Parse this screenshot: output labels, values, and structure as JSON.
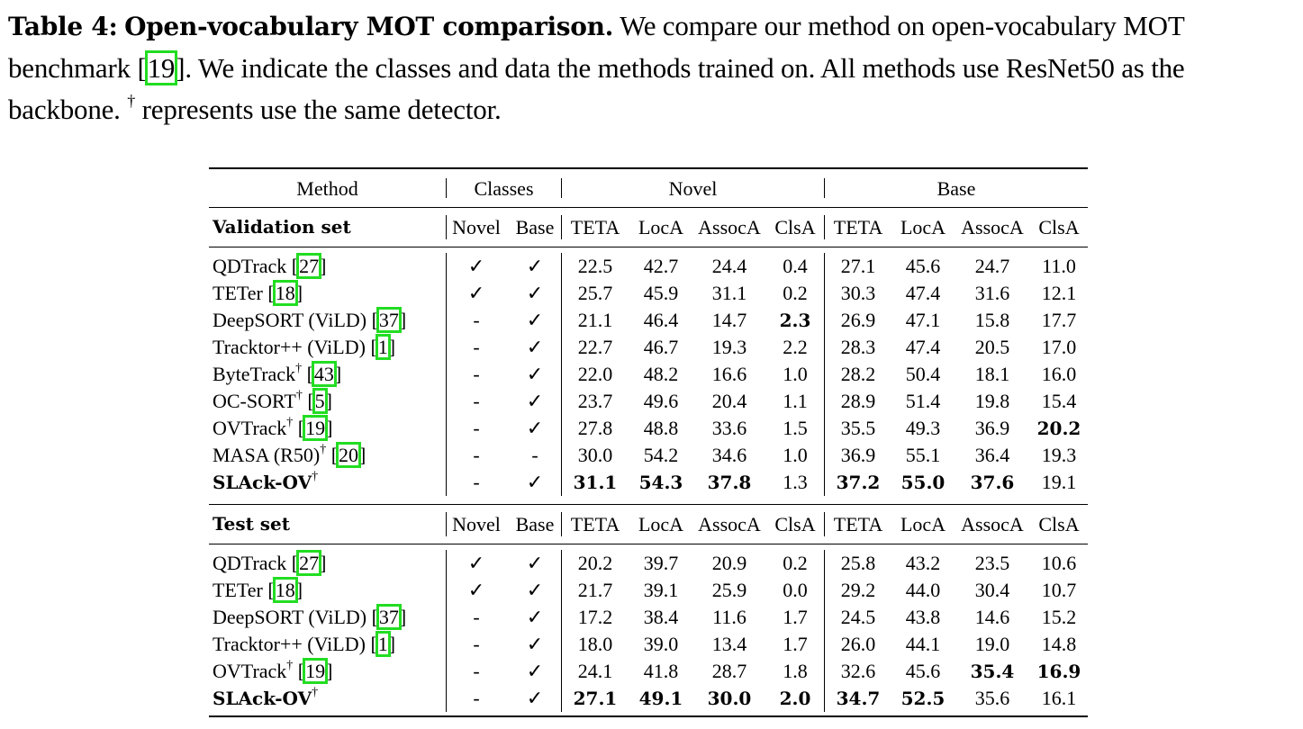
{
  "caption": {
    "label": "Table 4:",
    "title": "Open-vocabulary MOT comparison.",
    "text_1": "We compare our method on open-vocabulary MOT benchmark [",
    "cite": "19",
    "text_2": "]. We indicate the classes and data the methods trained on. All methods use ResNet50 as the backbone.",
    "dagger": "†",
    "text_3": "represents use the same detector."
  },
  "table": {
    "group_headers": [
      "Method",
      "Classes",
      "Novel",
      "Base"
    ],
    "sub_headers": [
      "Novel",
      "Base",
      "TETA",
      "LocA",
      "AssocA",
      "ClsA",
      "TETA",
      "LocA",
      "AssocA",
      "ClsA"
    ],
    "sections": [
      {
        "title": "Validation set",
        "rows": [
          {
            "method": "QDTrack",
            "dagger": "",
            "ref": "27",
            "novel": "✓",
            "base": "✓",
            "vals": [
              "22.5",
              "42.7",
              "24.4",
              "0.4",
              "27.1",
              "45.6",
              "24.7",
              "11.0"
            ],
            "bold": []
          },
          {
            "method": "TETer",
            "dagger": "",
            "ref": "18",
            "novel": "✓",
            "base": "✓",
            "vals": [
              "25.7",
              "45.9",
              "31.1",
              "0.2",
              "30.3",
              "47.4",
              "31.6",
              "12.1"
            ],
            "bold": []
          },
          {
            "method": "DeepSORT (ViLD)",
            "dagger": "",
            "ref": "37",
            "novel": "-",
            "base": "✓",
            "vals": [
              "21.1",
              "46.4",
              "14.7",
              "2.3",
              "26.9",
              "47.1",
              "15.8",
              "17.7"
            ],
            "bold": [
              3
            ]
          },
          {
            "method": "Tracktor++ (ViLD)",
            "dagger": "",
            "ref": "1",
            "novel": "-",
            "base": "✓",
            "vals": [
              "22.7",
              "46.7",
              "19.3",
              "2.2",
              "28.3",
              "47.4",
              "20.5",
              "17.0"
            ],
            "bold": []
          },
          {
            "method": "ByteTrack",
            "dagger": "†",
            "ref": "43",
            "novel": "-",
            "base": "✓",
            "vals": [
              "22.0",
              "48.2",
              "16.6",
              "1.0",
              "28.2",
              "50.4",
              "18.1",
              "16.0"
            ],
            "bold": []
          },
          {
            "method": "OC-SORT",
            "dagger": "†",
            "ref": "5",
            "novel": "-",
            "base": "✓",
            "vals": [
              "23.7",
              "49.6",
              "20.4",
              "1.1",
              "28.9",
              "51.4",
              "19.8",
              "15.4"
            ],
            "bold": []
          },
          {
            "method": "OVTrack",
            "dagger": "†",
            "ref": "19",
            "novel": "-",
            "base": "✓",
            "vals": [
              "27.8",
              "48.8",
              "33.6",
              "1.5",
              "35.5",
              "49.3",
              "36.9",
              "20.2"
            ],
            "bold": [
              7
            ]
          },
          {
            "method": "MASA (R50)",
            "dagger": "†",
            "ref": "20",
            "novel": "-",
            "base": "-",
            "vals": [
              "30.0",
              "54.2",
              "34.6",
              "1.0",
              "36.9",
              "55.1",
              "36.4",
              "19.3"
            ],
            "bold": []
          },
          {
            "method": "SLAck-OV",
            "dagger": "†",
            "ref": "",
            "method_bold": true,
            "novel": "-",
            "base": "✓",
            "vals": [
              "31.1",
              "54.3",
              "37.8",
              "1.3",
              "37.2",
              "55.0",
              "37.6",
              "19.1"
            ],
            "bold": [
              0,
              1,
              2,
              4,
              5,
              6
            ]
          }
        ]
      },
      {
        "title": "Test set",
        "rows": [
          {
            "method": "QDTrack",
            "dagger": "",
            "ref": "27",
            "novel": "✓",
            "base": "✓",
            "vals": [
              "20.2",
              "39.7",
              "20.9",
              "0.2",
              "25.8",
              "43.2",
              "23.5",
              "10.6"
            ],
            "bold": []
          },
          {
            "method": "TETer",
            "dagger": "",
            "ref": "18",
            "novel": "✓",
            "base": "✓",
            "vals": [
              "21.7",
              "39.1",
              "25.9",
              "0.0",
              "29.2",
              "44.0",
              "30.4",
              "10.7"
            ],
            "bold": []
          },
          {
            "method": "DeepSORT (ViLD)",
            "dagger": "",
            "ref": "37",
            "novel": "-",
            "base": "✓",
            "vals": [
              "17.2",
              "38.4",
              "11.6",
              "1.7",
              "24.5",
              "43.8",
              "14.6",
              "15.2"
            ],
            "bold": []
          },
          {
            "method": "Tracktor++ (ViLD)",
            "dagger": "",
            "ref": "1",
            "novel": "-",
            "base": "✓",
            "vals": [
              "18.0",
              "39.0",
              "13.4",
              "1.7",
              "26.0",
              "44.1",
              "19.0",
              "14.8"
            ],
            "bold": []
          },
          {
            "method": "OVTrack",
            "dagger": "†",
            "ref": "19",
            "novel": "-",
            "base": "✓",
            "vals": [
              "24.1",
              "41.8",
              "28.7",
              "1.8",
              "32.6",
              "45.6",
              "35.4",
              "16.9"
            ],
            "bold": [
              6,
              7
            ]
          },
          {
            "method": "SLAck-OV",
            "dagger": "†",
            "ref": "",
            "method_bold": true,
            "novel": "-",
            "base": "✓",
            "vals": [
              "27.1",
              "49.1",
              "30.0",
              "2.0",
              "34.7",
              "52.5",
              "35.6",
              "16.1"
            ],
            "bold": [
              0,
              1,
              2,
              3,
              4,
              5
            ]
          }
        ]
      }
    ]
  },
  "colors": {
    "citation_box": "#22dd22"
  }
}
